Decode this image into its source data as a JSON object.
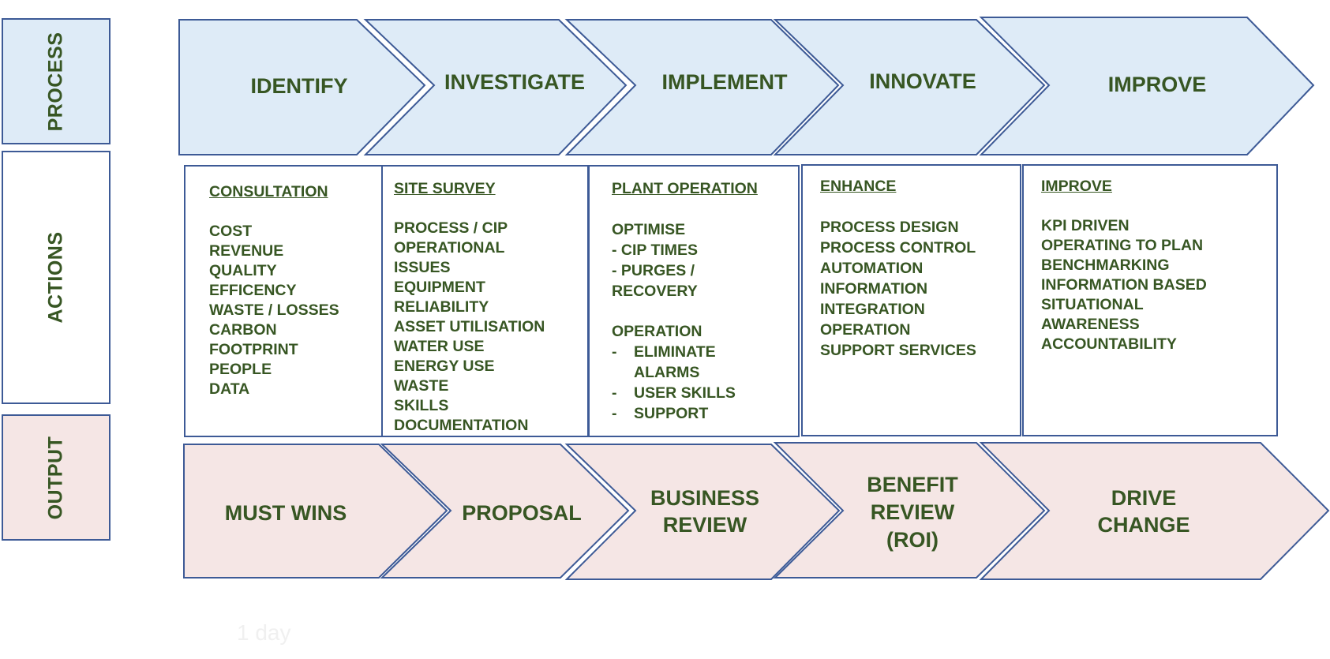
{
  "rows": {
    "process": "PROCESS",
    "actions": "ACTIONS",
    "output": "OUTPUT"
  },
  "process_steps": [
    "IDENTIFY",
    "INVESTIGATE",
    "IMPLEMENT",
    "INNOVATE",
    "IMPROVE"
  ],
  "output_steps": [
    [
      "MUST WINS"
    ],
    [
      "PROPOSAL"
    ],
    [
      "BUSINESS",
      "REVIEW"
    ],
    [
      "BENEFIT",
      "REVIEW",
      "(ROI)"
    ],
    [
      "DRIVE",
      "CHANGE"
    ]
  ],
  "actions": {
    "consultation": {
      "heading": "CONSULTATION",
      "items": [
        "COST",
        "REVENUE",
        "QUALITY",
        "EFFICENCY",
        "WASTE / LOSSES",
        "CARBON",
        "FOOTPRINT",
        "PEOPLE",
        "DATA"
      ]
    },
    "site_survey": {
      "heading": "SITE SURVEY",
      "items": [
        "PROCESS / CIP",
        "OPERATIONAL",
        "ISSUES",
        "EQUIPMENT",
        "RELIABILITY",
        "ASSET UTILISATION",
        "WATER USE",
        "ENERGY USE",
        "WASTE",
        "SKILLS",
        "DOCUMENTATION"
      ]
    },
    "plant_operation": {
      "heading": "PLANT OPERATION",
      "optimise": "OPTIMISE",
      "optimise_items": [
        "- CIP TIMES",
        "- PURGES /",
        "RECOVERY"
      ],
      "operation": "OPERATION",
      "operation_items": [
        "ELIMINATE ALARMS",
        "USER SKILLS",
        "SUPPORT"
      ]
    },
    "enhance": {
      "heading": "ENHANCE",
      "items": [
        "PROCESS DESIGN",
        "PROCESS CONTROL",
        "AUTOMATION",
        "INFORMATION",
        "INTEGRATION",
        "OPERATION",
        "SUPPORT SERVICES"
      ]
    },
    "improve": {
      "heading": "IMPROVE",
      "items": [
        "KPI DRIVEN",
        "OPERATING TO PLAN",
        "BENCHMARKING",
        "INFORMATION BASED",
        "SITUATIONAL",
        "AWARENESS",
        "ACCOUNTABILITY"
      ]
    }
  },
  "footer_note": "1 day",
  "colors": {
    "border": "#3d5a96",
    "text": "#375623",
    "process_fill": "#deebf7",
    "output_fill": "#f5e6e5"
  }
}
